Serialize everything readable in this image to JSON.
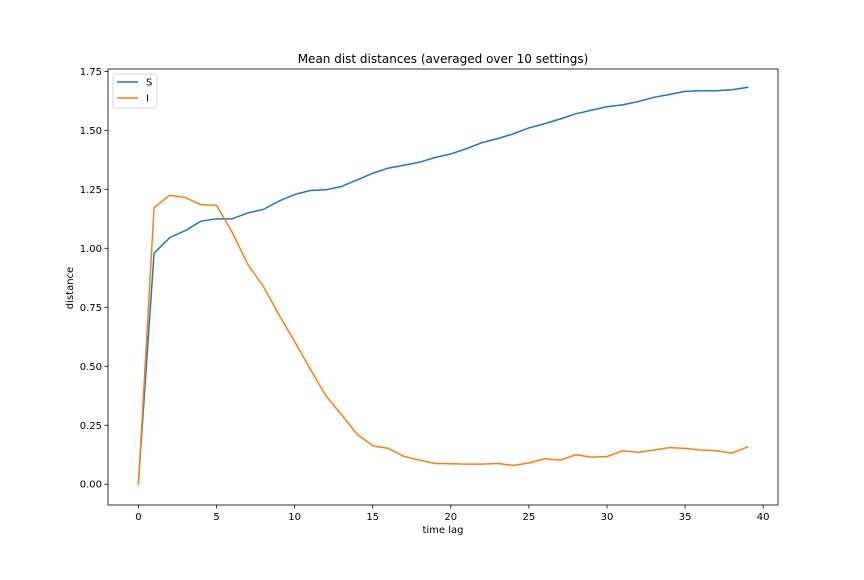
{
  "chart_data": {
    "type": "line",
    "title": "Mean dist distances (averaged over 10 settings)",
    "xlabel": "time lag",
    "ylabel": "distance",
    "xlim": [
      -1.95,
      40.95
    ],
    "ylim": [
      -0.088,
      1.76
    ],
    "xticks": [
      0,
      5,
      10,
      15,
      20,
      25,
      30,
      35,
      40
    ],
    "xtick_labels": [
      "0",
      "5",
      "10",
      "15",
      "20",
      "25",
      "30",
      "35",
      "40"
    ],
    "yticks": [
      0.0,
      0.25,
      0.5,
      0.75,
      1.0,
      1.25,
      1.5,
      1.75
    ],
    "ytick_labels": [
      "0.00",
      "0.25",
      "0.50",
      "0.75",
      "1.00",
      "1.25",
      "1.50",
      "1.75"
    ],
    "grid": false,
    "legend_position": "top-left",
    "x": [
      0,
      1,
      2,
      3,
      4,
      5,
      6,
      7,
      8,
      9,
      10,
      11,
      12,
      13,
      14,
      15,
      16,
      17,
      18,
      19,
      20,
      21,
      22,
      23,
      24,
      25,
      26,
      27,
      28,
      29,
      30,
      31,
      32,
      33,
      34,
      35,
      36,
      37,
      38,
      39
    ],
    "series": [
      {
        "name": "S",
        "color": "#1f77b4",
        "values": [
          0.01,
          0.98,
          1.045,
          1.075,
          1.115,
          1.125,
          1.125,
          1.15,
          1.165,
          1.2,
          1.228,
          1.245,
          1.248,
          1.262,
          1.29,
          1.318,
          1.34,
          1.352,
          1.365,
          1.385,
          1.4,
          1.422,
          1.448,
          1.465,
          1.485,
          1.51,
          1.528,
          1.548,
          1.57,
          1.585,
          1.6,
          1.608,
          1.622,
          1.64,
          1.652,
          1.665,
          1.668,
          1.668,
          1.672,
          1.682
        ]
      },
      {
        "name": "I",
        "color": "#ff7f0e",
        "values": [
          0.0,
          1.172,
          1.225,
          1.215,
          1.185,
          1.182,
          1.068,
          0.932,
          0.838,
          0.718,
          0.605,
          0.488,
          0.375,
          0.295,
          0.212,
          0.163,
          0.152,
          0.118,
          0.102,
          0.088,
          0.087,
          0.085,
          0.085,
          0.088,
          0.08,
          0.09,
          0.108,
          0.102,
          0.125,
          0.115,
          0.117,
          0.142,
          0.135,
          0.145,
          0.155,
          0.152,
          0.145,
          0.142,
          0.132,
          0.158
        ]
      }
    ]
  }
}
